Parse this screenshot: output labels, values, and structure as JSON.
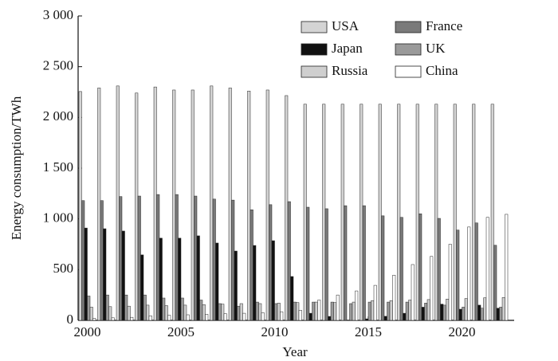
{
  "chart_data": {
    "type": "bar",
    "xlabel": "Year",
    "ylabel": "Energy consumption/TWh",
    "categories": [
      "2000",
      null,
      null,
      null,
      null,
      "2005",
      null,
      null,
      null,
      null,
      "2010",
      null,
      null,
      null,
      null,
      "2015",
      null,
      null,
      null,
      null,
      "2020",
      null,
      null
    ],
    "ylim": [
      0,
      3000
    ],
    "yticks": [
      0,
      500,
      {
        "value": 1000,
        "label": "1 000"
      },
      {
        "value": 1500,
        "label": "1 500"
      },
      {
        "value": 2000,
        "label": "2 000"
      },
      {
        "value": 2500,
        "label": "2 500"
      },
      {
        "value": 3000,
        "label": "3 000"
      }
    ],
    "series": [
      {
        "name": "USA",
        "color": "#d4d4d4",
        "values": [
          2255,
          2290,
          2310,
          2240,
          2300,
          2270,
          2270,
          2310,
          2290,
          2260,
          2270,
          2215,
          2130,
          2130,
          2130,
          2130,
          2130,
          2130,
          2130,
          2130,
          2130,
          2130,
          2130
        ]
      },
      {
        "name": "France",
        "color": "#7a7a7a",
        "values": [
          1180,
          1180,
          1220,
          1225,
          1240,
          1240,
          1225,
          1195,
          1185,
          1090,
          1140,
          1170,
          1115,
          1100,
          1130,
          1130,
          1030,
          1015,
          1050,
          1005,
          890,
          960,
          740
        ]
      },
      {
        "name": "Japan",
        "color": "#111111",
        "values": [
          910,
          903,
          880,
          645,
          810,
          810,
          833,
          762,
          683,
          738,
          785,
          432,
          70,
          39,
          0,
          15,
          40,
          70,
          130,
          160,
          110,
          150,
          120
        ]
      },
      {
        "name": "UK",
        "color": "#9a9a9a",
        "values": [
          240,
          250,
          250,
          250,
          220,
          220,
          200,
          165,
          140,
          180,
          165,
          180,
          180,
          180,
          165,
          180,
          180,
          180,
          170,
          150,
          130,
          120,
          130
        ]
      },
      {
        "name": "Russia",
        "color": "#cfcfcf",
        "values": [
          130,
          135,
          140,
          150,
          145,
          150,
          155,
          160,
          165,
          165,
          170,
          175,
          180,
          175,
          180,
          195,
          195,
          200,
          205,
          210,
          215,
          222,
          225
        ]
      },
      {
        "name": "China",
        "color": "#ffffff",
        "values": [
          20,
          25,
          30,
          45,
          50,
          55,
          60,
          65,
          70,
          75,
          85,
          100,
          200,
          250,
          290,
          345,
          445,
          550,
          630,
          750,
          920,
          1015,
          1045
        ]
      }
    ]
  }
}
